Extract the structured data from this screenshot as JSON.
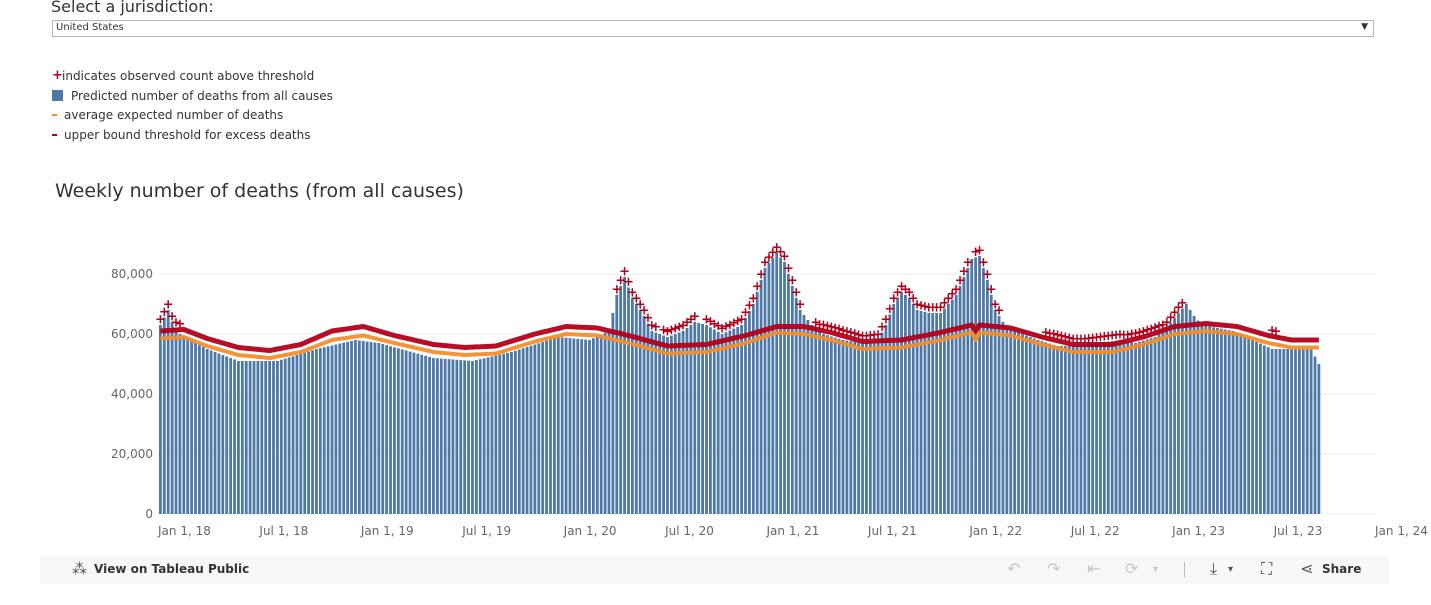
{
  "jurisdiction": {
    "label": "Select a jurisdiction:",
    "selected": "United States"
  },
  "legend": [
    {
      "symbol": "plus",
      "color": "#b3001b",
      "text": "indicates observed count above threshold"
    },
    {
      "symbol": "square",
      "color": "#4e79a7",
      "text": "Predicted number of deaths from all causes"
    },
    {
      "symbol": "dash",
      "color": "#f28e2b",
      "text": "average expected number of deaths"
    },
    {
      "symbol": "dash",
      "color": "#b3001b",
      "text": "upper bound threshold for excess deaths"
    }
  ],
  "chart_data": {
    "type": "bar",
    "title": "Weekly number of deaths (from all causes)",
    "xlabel": "",
    "ylabel": "",
    "ylim": [
      0,
      92000
    ],
    "y_ticks": [
      {
        "value": 0,
        "label": "0"
      },
      {
        "value": 20000,
        "label": "20,000"
      },
      {
        "value": 40000,
        "label": "40,000"
      },
      {
        "value": 60000,
        "label": "60,000"
      },
      {
        "value": 80000,
        "label": "80,000"
      }
    ],
    "x_ticks": [
      {
        "week": 0,
        "label": "Jan 1, 18"
      },
      {
        "week": 26,
        "label": "Jul 1, 18"
      },
      {
        "week": 52,
        "label": "Jan 1, 19"
      },
      {
        "week": 78,
        "label": "Jul 1, 19"
      },
      {
        "week": 104,
        "label": "Jan 1, 20"
      },
      {
        "week": 130,
        "label": "Jul 1, 20"
      },
      {
        "week": 156,
        "label": "Jan 1, 21"
      },
      {
        "week": 182,
        "label": "Jul 1, 21"
      },
      {
        "week": 208,
        "label": "Jan 1, 22"
      },
      {
        "week": 234,
        "label": "Jul 1, 22"
      },
      {
        "week": 260,
        "label": "Jan 1, 23"
      },
      {
        "week": 286,
        "label": "Jul 1, 23"
      },
      {
        "week": 312,
        "label": "Jan 1, 24"
      }
    ],
    "x_range_weeks": [
      0,
      312
    ],
    "series": [
      {
        "name": "Predicted number of deaths from all causes",
        "mark": "bar",
        "anchors": [
          [
            0,
            63000
          ],
          [
            2,
            68000
          ],
          [
            3,
            64000
          ],
          [
            5,
            60000
          ],
          [
            12,
            55000
          ],
          [
            20,
            51000
          ],
          [
            30,
            51000
          ],
          [
            40,
            55000
          ],
          [
            50,
            58000
          ],
          [
            56,
            57000
          ],
          [
            70,
            52000
          ],
          [
            80,
            51000
          ],
          [
            90,
            54000
          ],
          [
            102,
            59000
          ],
          [
            110,
            58000
          ],
          [
            115,
            61000
          ],
          [
            117,
            73000
          ],
          [
            119,
            79000
          ],
          [
            121,
            72000
          ],
          [
            124,
            66000
          ],
          [
            126,
            61000
          ],
          [
            130,
            59000
          ],
          [
            134,
            61000
          ],
          [
            137,
            64000
          ],
          [
            140,
            63000
          ],
          [
            144,
            60000
          ],
          [
            149,
            63000
          ],
          [
            152,
            70000
          ],
          [
            155,
            82000
          ],
          [
            158,
            87000
          ],
          [
            160,
            84000
          ],
          [
            162,
            76000
          ],
          [
            164,
            68000
          ],
          [
            167,
            63000
          ],
          [
            170,
            60000
          ],
          [
            175,
            58000
          ],
          [
            180,
            57000
          ],
          [
            184,
            58000
          ],
          [
            186,
            63000
          ],
          [
            188,
            70000
          ],
          [
            190,
            74000
          ],
          [
            192,
            72000
          ],
          [
            194,
            68000
          ],
          [
            197,
            67000
          ],
          [
            200,
            67000
          ],
          [
            204,
            73000
          ],
          [
            208,
            85000
          ],
          [
            210,
            86000
          ],
          [
            212,
            78000
          ],
          [
            214,
            68000
          ],
          [
            217,
            62000
          ],
          [
            225,
            58000
          ],
          [
            230,
            56000
          ],
          [
            234,
            56000
          ],
          [
            240,
            57000
          ],
          [
            246,
            58000
          ],
          [
            250,
            57000
          ],
          [
            255,
            59000
          ],
          [
            258,
            62000
          ],
          [
            261,
            67000
          ],
          [
            263,
            70000
          ],
          [
            265,
            66000
          ],
          [
            267,
            63000
          ],
          [
            275,
            61000
          ],
          [
            285,
            55000
          ],
          [
            295,
            55000
          ],
          [
            297,
            50000
          ]
        ]
      },
      {
        "name": "average expected number of deaths",
        "mark": "line",
        "color": "#f28e2b",
        "anchors": [
          [
            0,
            58500
          ],
          [
            6,
            59000
          ],
          [
            12,
            56000
          ],
          [
            20,
            53000
          ],
          [
            28,
            52000
          ],
          [
            36,
            54000
          ],
          [
            44,
            58000
          ],
          [
            52,
            59500
          ],
          [
            60,
            57000
          ],
          [
            70,
            54000
          ],
          [
            78,
            53000
          ],
          [
            86,
            53500
          ],
          [
            96,
            57500
          ],
          [
            104,
            60000
          ],
          [
            112,
            59500
          ],
          [
            120,
            57000
          ],
          [
            130,
            53500
          ],
          [
            140,
            54000
          ],
          [
            150,
            57000
          ],
          [
            158,
            60500
          ],
          [
            165,
            60000
          ],
          [
            172,
            58000
          ],
          [
            180,
            55000
          ],
          [
            190,
            55500
          ],
          [
            200,
            58000
          ],
          [
            208,
            60500
          ],
          [
            209,
            58000
          ],
          [
            210,
            60500
          ],
          [
            218,
            59500
          ],
          [
            226,
            56500
          ],
          [
            234,
            54000
          ],
          [
            244,
            54000
          ],
          [
            252,
            56500
          ],
          [
            260,
            60000
          ],
          [
            268,
            61000
          ],
          [
            276,
            60000
          ],
          [
            284,
            57000
          ],
          [
            290,
            55500
          ],
          [
            297,
            55500
          ]
        ]
      },
      {
        "name": "upper bound threshold for excess deaths",
        "mark": "line",
        "color": "#b3001b",
        "anchors": [
          [
            0,
            61000
          ],
          [
            6,
            61500
          ],
          [
            12,
            58500
          ],
          [
            20,
            55500
          ],
          [
            28,
            54500
          ],
          [
            36,
            56500
          ],
          [
            44,
            61000
          ],
          [
            52,
            62500
          ],
          [
            60,
            59500
          ],
          [
            70,
            56500
          ],
          [
            78,
            55500
          ],
          [
            86,
            56000
          ],
          [
            96,
            60000
          ],
          [
            104,
            62500
          ],
          [
            112,
            62000
          ],
          [
            120,
            59500
          ],
          [
            130,
            56000
          ],
          [
            140,
            56500
          ],
          [
            150,
            59500
          ],
          [
            158,
            62500
          ],
          [
            165,
            62500
          ],
          [
            172,
            60500
          ],
          [
            180,
            57500
          ],
          [
            190,
            58000
          ],
          [
            200,
            60500
          ],
          [
            208,
            63000
          ],
          [
            209,
            61000
          ],
          [
            210,
            63000
          ],
          [
            218,
            62000
          ],
          [
            226,
            59000
          ],
          [
            234,
            56500
          ],
          [
            244,
            56500
          ],
          [
            252,
            59000
          ],
          [
            260,
            62500
          ],
          [
            268,
            63500
          ],
          [
            276,
            62500
          ],
          [
            284,
            59500
          ],
          [
            290,
            58000
          ],
          [
            297,
            58000
          ]
        ]
      },
      {
        "name": "indicates observed count above threshold",
        "mark": "plus",
        "color": "#b3001b",
        "ranges": [
          [
            0,
            5
          ],
          [
            117,
            127
          ],
          [
            129,
            137
          ],
          [
            140,
            164
          ],
          [
            168,
            207
          ],
          [
            209,
            215
          ],
          [
            227,
            262
          ],
          [
            285,
            286
          ]
        ],
        "offset_above_bar": 2200
      }
    ]
  },
  "footer": {
    "view_label": "View on Tableau Public",
    "share_label": "Share"
  }
}
